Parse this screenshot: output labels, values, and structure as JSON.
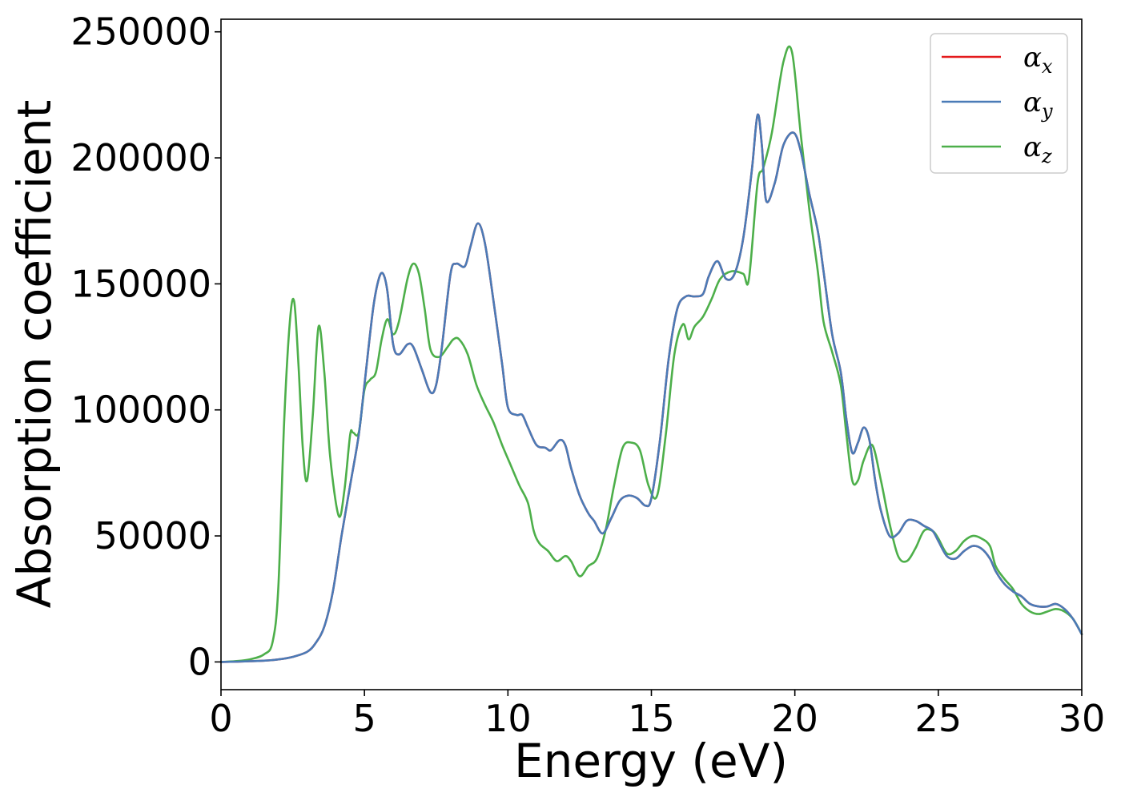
{
  "chart_data": {
    "type": "line",
    "title": "",
    "xlabel": "Energy (eV)",
    "ylabel": "Absorption coefficient",
    "xlim": [
      0,
      30
    ],
    "ylim": [
      -11000,
      255000
    ],
    "xticks": [
      0,
      5,
      10,
      15,
      20,
      25,
      30
    ],
    "yticks": [
      0,
      50000,
      100000,
      150000,
      200000,
      250000
    ],
    "xtick_labels": [
      "0",
      "5",
      "10",
      "15",
      "20",
      "25",
      "30"
    ],
    "ytick_labels": [
      "0",
      "50000",
      "100000",
      "150000",
      "200000",
      "250000"
    ],
    "grid": false,
    "legend_position": "top-right",
    "series": [
      {
        "name": "α",
        "subscript": "x",
        "color": "#e41a1c",
        "x": [
          0,
          0.5,
          1.0,
          1.5,
          2.0,
          2.5,
          3.0,
          3.3,
          3.6,
          3.9,
          4.2,
          4.5,
          4.8,
          5.0,
          5.3,
          5.5,
          5.65,
          5.8,
          6.0,
          6.2,
          6.5,
          6.7,
          7.0,
          7.3,
          7.5,
          7.7,
          8.0,
          8.2,
          8.5,
          8.7,
          8.95,
          9.2,
          9.5,
          9.8,
          10.0,
          10.3,
          10.5,
          10.7,
          11.0,
          11.3,
          11.5,
          11.8,
          12.0,
          12.2,
          12.5,
          12.8,
          13.0,
          13.3,
          13.6,
          13.9,
          14.2,
          14.5,
          14.8,
          15.0,
          15.3,
          15.6,
          15.9,
          16.2,
          16.5,
          16.8,
          17.0,
          17.3,
          17.6,
          17.9,
          18.2,
          18.5,
          18.7,
          18.85,
          19.0,
          19.3,
          19.6,
          19.95,
          20.2,
          20.5,
          20.8,
          21.0,
          21.3,
          21.6,
          21.8,
          22.0,
          22.2,
          22.4,
          22.6,
          22.8,
          23.0,
          23.3,
          23.6,
          23.9,
          24.2,
          24.5,
          24.8,
          25.0,
          25.3,
          25.6,
          25.9,
          26.2,
          26.5,
          26.8,
          27.0,
          27.3,
          27.6,
          27.9,
          28.2,
          28.5,
          28.8,
          29.1,
          29.4,
          29.7,
          30.0
        ],
        "y": [
          0,
          100,
          300,
          500,
          1000,
          2000,
          4000,
          7500,
          14000,
          28000,
          50000,
          70000,
          90000,
          110000,
          140000,
          152000,
          154000,
          147000,
          126000,
          122000,
          126000,
          125000,
          116000,
          107000,
          110000,
          125000,
          154000,
          158000,
          157000,
          165000,
          174000,
          166000,
          143000,
          118000,
          101000,
          98000,
          98000,
          93000,
          86000,
          85000,
          84000,
          88000,
          86000,
          77000,
          66000,
          59000,
          56000,
          51000,
          57000,
          64000,
          66000,
          65000,
          62000,
          65000,
          88000,
          120000,
          140000,
          145000,
          145000,
          146000,
          153000,
          159000,
          152000,
          154000,
          168000,
          195000,
          217000,
          205000,
          183000,
          190000,
          205000,
          210000,
          203000,
          186000,
          171000,
          155000,
          130000,
          115000,
          96000,
          83000,
          87000,
          93000,
          88000,
          72000,
          60000,
          50000,
          51000,
          56000,
          56000,
          54000,
          52000,
          48000,
          42000,
          41000,
          44000,
          46000,
          45000,
          41000,
          36000,
          31000,
          28000,
          26000,
          23000,
          22000,
          22000,
          23000,
          21000,
          17000,
          11000
        ]
      },
      {
        "name": "α",
        "subscript": "y",
        "color": "#4a7bb7",
        "x": [
          0,
          0.5,
          1.0,
          1.5,
          2.0,
          2.5,
          3.0,
          3.3,
          3.6,
          3.9,
          4.2,
          4.5,
          4.8,
          5.0,
          5.3,
          5.5,
          5.65,
          5.8,
          6.0,
          6.2,
          6.5,
          6.7,
          7.0,
          7.3,
          7.5,
          7.7,
          8.0,
          8.2,
          8.5,
          8.7,
          8.95,
          9.2,
          9.5,
          9.8,
          10.0,
          10.3,
          10.5,
          10.7,
          11.0,
          11.3,
          11.5,
          11.8,
          12.0,
          12.2,
          12.5,
          12.8,
          13.0,
          13.3,
          13.6,
          13.9,
          14.2,
          14.5,
          14.8,
          15.0,
          15.3,
          15.6,
          15.9,
          16.2,
          16.5,
          16.8,
          17.0,
          17.3,
          17.6,
          17.9,
          18.2,
          18.5,
          18.7,
          18.85,
          19.0,
          19.3,
          19.6,
          19.95,
          20.2,
          20.5,
          20.8,
          21.0,
          21.3,
          21.6,
          21.8,
          22.0,
          22.2,
          22.4,
          22.6,
          22.8,
          23.0,
          23.3,
          23.6,
          23.9,
          24.2,
          24.5,
          24.8,
          25.0,
          25.3,
          25.6,
          25.9,
          26.2,
          26.5,
          26.8,
          27.0,
          27.3,
          27.6,
          27.9,
          28.2,
          28.5,
          28.8,
          29.1,
          29.4,
          29.7,
          30.0
        ],
        "y": [
          0,
          100,
          300,
          500,
          1000,
          2000,
          4000,
          7500,
          14000,
          28000,
          50000,
          70000,
          90000,
          110000,
          140000,
          152000,
          154000,
          147000,
          126000,
          122000,
          126000,
          125000,
          116000,
          107000,
          110000,
          125000,
          154000,
          158000,
          157000,
          165000,
          174000,
          166000,
          143000,
          118000,
          101000,
          98000,
          98000,
          93000,
          86000,
          85000,
          84000,
          88000,
          86000,
          77000,
          66000,
          59000,
          56000,
          51000,
          57000,
          64000,
          66000,
          65000,
          62000,
          65000,
          88000,
          120000,
          140000,
          145000,
          145000,
          146000,
          153000,
          159000,
          152000,
          154000,
          168000,
          195000,
          217000,
          205000,
          183000,
          190000,
          205000,
          210000,
          203000,
          186000,
          171000,
          155000,
          130000,
          115000,
          96000,
          83000,
          87000,
          93000,
          88000,
          72000,
          60000,
          50000,
          51000,
          56000,
          56000,
          54000,
          52000,
          48000,
          42000,
          41000,
          44000,
          46000,
          45000,
          41000,
          36000,
          31000,
          28000,
          26000,
          23000,
          22000,
          22000,
          23000,
          21000,
          17000,
          11000
        ]
      },
      {
        "name": "α",
        "subscript": "z",
        "color": "#4daf4a",
        "x": [
          0,
          0.5,
          1.0,
          1.5,
          1.8,
          2.0,
          2.2,
          2.4,
          2.55,
          2.7,
          2.85,
          3.0,
          3.2,
          3.4,
          3.6,
          3.8,
          4.1,
          4.3,
          4.5,
          4.6,
          4.8,
          5.0,
          5.2,
          5.4,
          5.6,
          5.8,
          6.0,
          6.2,
          6.5,
          6.7,
          6.9,
          7.1,
          7.3,
          7.6,
          7.9,
          8.1,
          8.3,
          8.6,
          8.9,
          9.2,
          9.5,
          9.8,
          10.1,
          10.4,
          10.7,
          10.9,
          11.1,
          11.4,
          11.7,
          12.0,
          12.2,
          12.5,
          12.8,
          13.1,
          13.4,
          13.7,
          14.0,
          14.3,
          14.6,
          14.9,
          15.2,
          15.5,
          15.8,
          16.1,
          16.3,
          16.5,
          16.8,
          17.1,
          17.4,
          17.8,
          18.2,
          18.4,
          18.7,
          18.9,
          19.2,
          19.6,
          19.9,
          20.2,
          20.5,
          20.8,
          21.0,
          21.3,
          21.6,
          21.8,
          22.0,
          22.2,
          22.4,
          22.7,
          23.0,
          23.3,
          23.6,
          23.9,
          24.2,
          24.5,
          24.8,
          25.0,
          25.3,
          25.6,
          25.9,
          26.2,
          26.5,
          26.8,
          27.0,
          27.3,
          27.6,
          27.9,
          28.2,
          28.5,
          28.8,
          29.1,
          29.4,
          29.7,
          30.0
        ],
        "y": [
          0,
          300,
          1000,
          3000,
          8000,
          30000,
          95000,
          135000,
          143000,
          118000,
          85000,
          72000,
          98000,
          133000,
          115000,
          82000,
          58000,
          68000,
          90000,
          91000,
          91000,
          108000,
          112000,
          115000,
          128000,
          136000,
          130000,
          135000,
          152000,
          158000,
          154000,
          140000,
          124000,
          121000,
          125000,
          128000,
          128000,
          122000,
          110000,
          102000,
          95000,
          86000,
          78000,
          70000,
          63000,
          52000,
          47000,
          44000,
          40000,
          42000,
          40000,
          34000,
          38000,
          41000,
          52000,
          70000,
          85000,
          87000,
          84000,
          70000,
          66000,
          90000,
          122000,
          134000,
          128000,
          133000,
          137000,
          144000,
          152000,
          155000,
          154000,
          152000,
          190000,
          196000,
          210000,
          238000,
          242000,
          210000,
          180000,
          155000,
          135000,
          123000,
          110000,
          90000,
          72000,
          72000,
          80000,
          86000,
          72000,
          55000,
          42000,
          40000,
          45000,
          52000,
          52000,
          49000,
          43000,
          44000,
          48000,
          50000,
          49000,
          46000,
          38000,
          33000,
          29000,
          23000,
          20000,
          19000,
          20000,
          21000,
          20000,
          17000,
          11000
        ]
      }
    ]
  }
}
